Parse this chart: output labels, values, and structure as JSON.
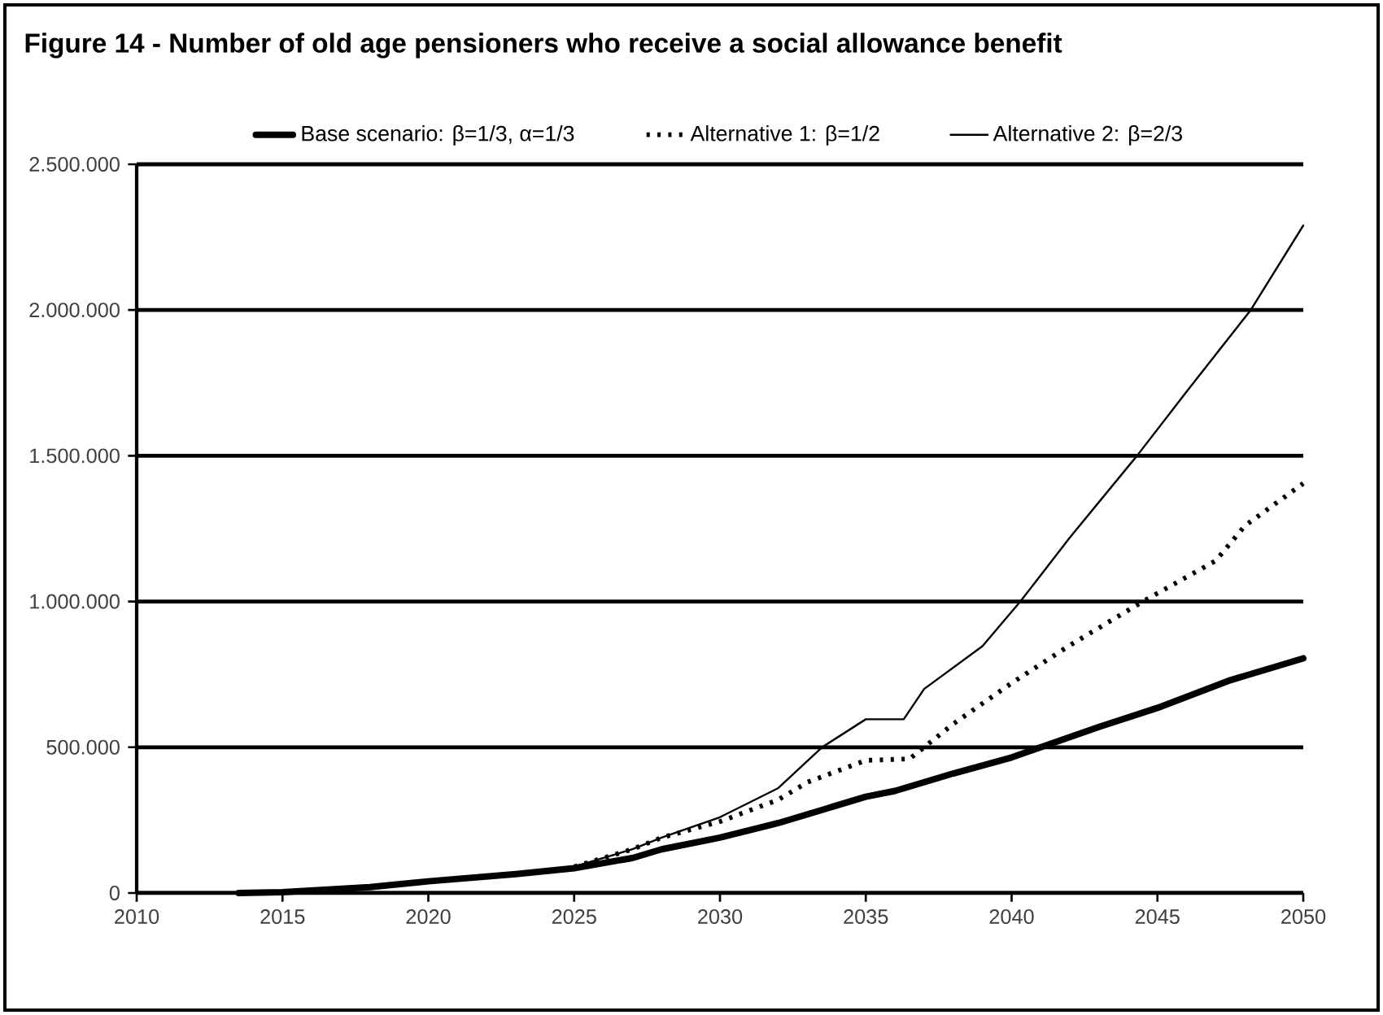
{
  "chart_data": {
    "type": "line",
    "title": "Figure 14 - Number of old age pensioners who receive a social allowance benefit",
    "xlim": [
      2010,
      2050
    ],
    "xticks": [
      2010,
      2015,
      2020,
      2025,
      2030,
      2035,
      2040,
      2045,
      2050
    ],
    "ylim": [
      0,
      2500000
    ],
    "yticks": [
      0,
      {
        "value": 500000,
        "label": "500.000"
      },
      {
        "value": 1000000,
        "label": "1.000.000"
      },
      {
        "value": 1500000,
        "label": "1.500.000"
      },
      {
        "value": 2000000,
        "label": "2.000.000"
      },
      {
        "value": 2500000,
        "label": "2.500.000"
      }
    ],
    "grid": "y",
    "legend": "top",
    "marker": "none",
    "series": [
      {
        "name": "Base scenario: β=1/3, α=1/3",
        "color": "#000000",
        "line_style": "solid",
        "x": [
          2013.5,
          2015,
          2018,
          2020,
          2023,
          2025,
          2027,
          2028,
          2030,
          2032,
          2034,
          2035,
          2036,
          2038,
          2040,
          2041,
          2043,
          2045,
          2047.5,
          2050
        ],
        "values": [
          0,
          3000,
          20000,
          40000,
          65000,
          85000,
          120000,
          150000,
          190000,
          240000,
          300000,
          330000,
          350000,
          410000,
          465000,
          500000,
          570000,
          635000,
          730000,
          805000
        ]
      },
      {
        "name": "Alternative 1: β=1/2",
        "color": "#000000",
        "line_style": "dotted",
        "x": [
          2025,
          2027,
          2028,
          2030,
          2032,
          2033,
          2035,
          2036.5,
          2038,
          2040,
          2042,
          2044.5,
          2047,
          2048,
          2050
        ],
        "values": [
          90000,
          150000,
          190000,
          245000,
          320000,
          380000,
          455000,
          460000,
          580000,
          720000,
          850000,
          1000000,
          1140000,
          1260000,
          1405000
        ]
      },
      {
        "name": "Alternative 2: β=2/3",
        "color": "#000000",
        "line_style": "solid",
        "x": [
          2025,
          2027,
          2028,
          2030,
          2032,
          2033.5,
          2035,
          2036.3,
          2037,
          2039,
          2040.3,
          2042,
          2044.3,
          2046,
          2048.2,
          2050
        ],
        "values": [
          90000,
          150000,
          190000,
          260000,
          360000,
          500000,
          596000,
          596000,
          700000,
          847000,
          1000000,
          1220000,
          1500000,
          1720000,
          2000000,
          2290000
        ]
      }
    ]
  }
}
